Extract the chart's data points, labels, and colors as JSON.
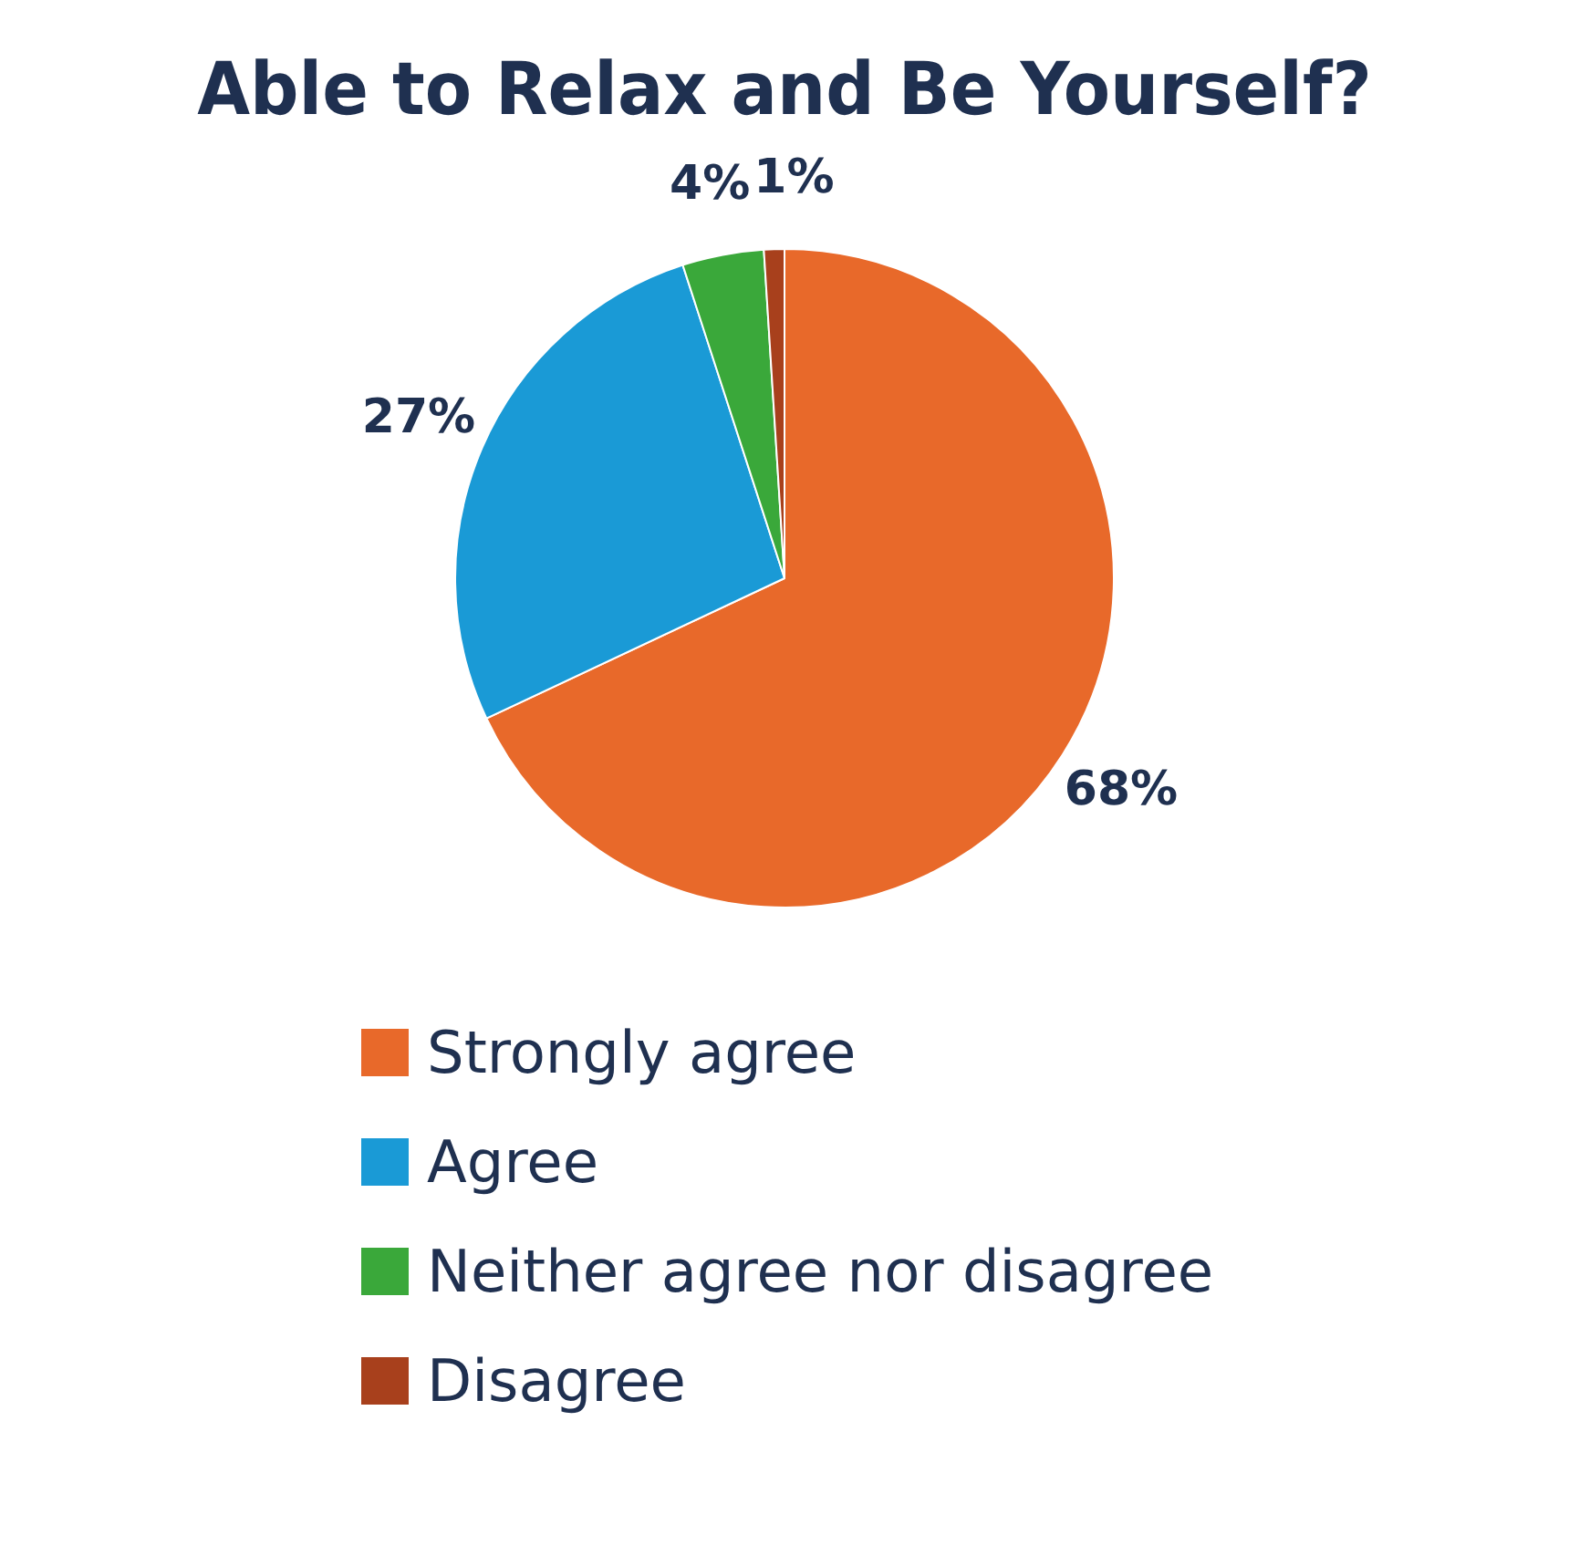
{
  "chart_data": {
    "type": "pie",
    "title": "Able to Relax and Be Yourself?",
    "categories": [
      "Strongly agree",
      "Agree",
      "Neither agree nor disagree",
      "Disagree"
    ],
    "values": [
      68,
      27,
      4,
      1
    ],
    "colors": [
      "#e8692a",
      "#1a9ad6",
      "#3aa83a",
      "#a8401c"
    ],
    "value_labels": [
      "68%",
      "27%",
      "4%",
      "1%"
    ],
    "legend": "bottom"
  }
}
